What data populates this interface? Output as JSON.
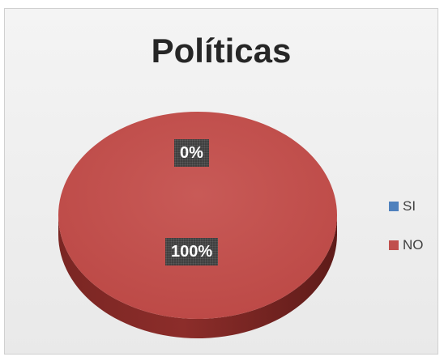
{
  "chart_data": {
    "type": "pie",
    "title": "Políticas",
    "categories": [
      "SI",
      "NO"
    ],
    "values": [
      0,
      100
    ],
    "data_labels": [
      "0%",
      "100%"
    ],
    "colors": [
      "#4f81bd",
      "#c0504d"
    ],
    "legend_position": "right",
    "style": "3d"
  }
}
